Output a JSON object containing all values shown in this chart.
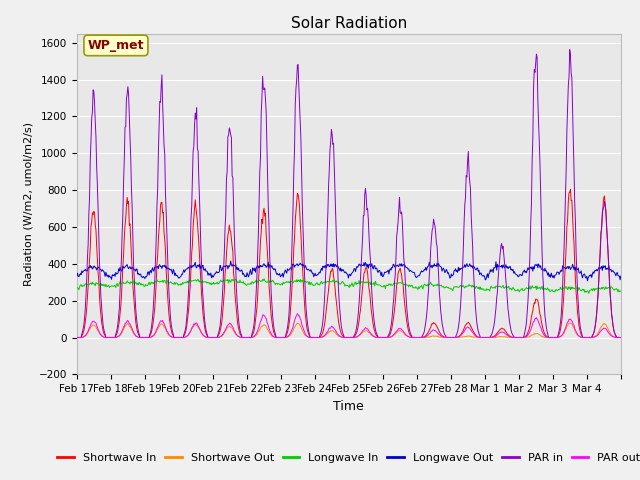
{
  "title": "Solar Radiation",
  "xlabel": "Time",
  "ylabel": "Radiation (W/m2, umol/m2/s)",
  "ylim": [
    -200,
    1650
  ],
  "yticks": [
    -200,
    0,
    200,
    400,
    600,
    800,
    1000,
    1200,
    1400,
    1600
  ],
  "date_labels": [
    "Feb 17",
    "Feb 18",
    "Feb 19",
    "Feb 20",
    "Feb 21",
    "Feb 22",
    "Feb 23",
    "Feb 24",
    "Feb 25",
    "Feb 26",
    "Feb 27",
    "Feb 28",
    "Mar 1",
    "Mar 2",
    "Mar 3",
    "Mar 4"
  ],
  "annotation": "WP_met",
  "legend_entries": [
    "Shortwave In",
    "Shortwave Out",
    "Longwave In",
    "Longwave Out",
    "PAR in",
    "PAR out"
  ],
  "line_colors": [
    "#ff0000",
    "#ff8800",
    "#00cc00",
    "#0000cc",
    "#8800cc",
    "#ff00ff"
  ],
  "background_color": "#f0f0f0",
  "plot_bg_color": "#e8e8e8",
  "grid_color": "#ffffff",
  "n_days": 16,
  "pts_per_day": 48
}
